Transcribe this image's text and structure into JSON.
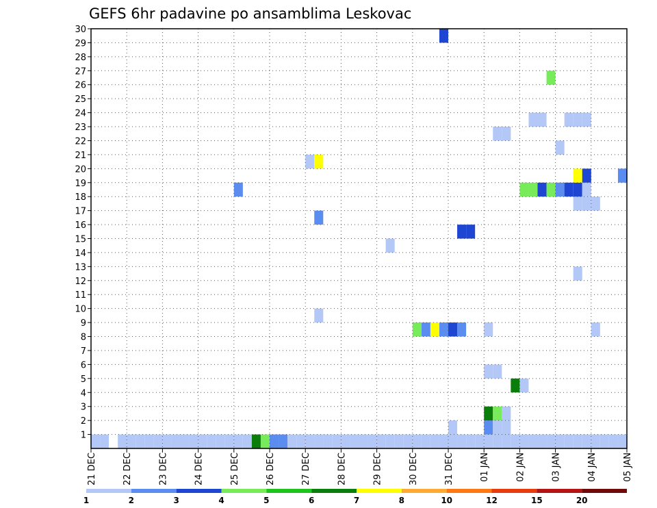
{
  "chart_data": {
    "type": "heatmap",
    "title": "GEFS 6hr padavine po ansamblima Leskovac",
    "xlabel": "",
    "ylabel": "",
    "x_ticks": [
      "21 DEC",
      "22 DEC",
      "23 DEC",
      "24 DEC",
      "25 DEC",
      "26 DEC",
      "27 DEC",
      "28 DEC",
      "29 DEC",
      "30 DEC",
      "31 DEC",
      "01 JAN",
      "02 JAN",
      "03 JAN",
      "04 JAN",
      "05 JAN"
    ],
    "x_range_days": [
      0,
      15
    ],
    "y_ticks": [
      1,
      2,
      3,
      4,
      5,
      6,
      7,
      8,
      9,
      10,
      11,
      12,
      13,
      14,
      15,
      16,
      17,
      18,
      19,
      20,
      21,
      22,
      23,
      24,
      25,
      26,
      27,
      28,
      29,
      30
    ],
    "y_range": [
      0,
      30
    ],
    "grid": true,
    "legend_placement": "bottom",
    "legend": {
      "labels": [
        "1",
        "2",
        "3",
        "4",
        "5",
        "6",
        "7",
        "8",
        "10",
        "12",
        "15",
        "20"
      ],
      "colors": [
        "#b4c8f8",
        "#5b8cf0",
        "#1e46d2",
        "#78eb5a",
        "#1ec31e",
        "#0a7d0a",
        "#ffff00",
        "#ffaa32",
        "#ff7814",
        "#e63c0f",
        "#b41414",
        "#6e0a0a"
      ]
    },
    "cells": [
      [
        0.125,
        0,
        "#b4c8f8"
      ],
      [
        0.375,
        0,
        "#b4c8f8"
      ],
      [
        0.875,
        0,
        "#b4c8f8"
      ],
      [
        4.375,
        0,
        "#b4c8f8"
      ],
      [
        4.625,
        0,
        "#0a7d0a"
      ],
      [
        4.875,
        0,
        "#78eb5a"
      ],
      [
        5.125,
        0,
        "#5b8cf0"
      ],
      [
        5.375,
        0,
        "#5b8cf0"
      ],
      [
        5.625,
        0,
        "#b4c8f8"
      ],
      [
        5.875,
        0,
        "#b4c8f8"
      ],
      [
        6.125,
        0,
        "#b4c8f8"
      ],
      [
        6.375,
        0,
        "#b4c8f8"
      ],
      [
        6.625,
        0,
        "#b4c8f8"
      ],
      [
        6.875,
        0,
        "#b4c8f8"
      ],
      [
        7.125,
        0,
        "#b4c8f8"
      ],
      [
        7.375,
        0,
        "#b4c8f8"
      ],
      [
        7.625,
        0,
        "#b4c8f8"
      ],
      [
        7.875,
        0,
        "#b4c8f8"
      ],
      [
        8.125,
        0,
        "#b4c8f8"
      ],
      [
        8.375,
        0,
        "#b4c8f8"
      ],
      [
        8.625,
        0,
        "#b4c8f8"
      ],
      [
        8.875,
        0,
        "#b4c8f8"
      ],
      [
        9.125,
        0,
        "#b4c8f8"
      ],
      [
        9.375,
        0,
        "#b4c8f8"
      ],
      [
        9.625,
        0,
        "#b4c8f8"
      ],
      [
        9.875,
        0,
        "#b4c8f8"
      ],
      [
        10.125,
        0,
        "#b4c8f8"
      ],
      [
        10.375,
        0,
        "#b4c8f8"
      ],
      [
        10.625,
        0,
        "#b4c8f8"
      ],
      [
        10.875,
        0,
        "#b4c8f8"
      ],
      [
        11.125,
        0,
        "#b4c8f8"
      ],
      [
        11.375,
        0,
        "#b4c8f8"
      ],
      [
        11.625,
        0,
        "#b4c8f8"
      ],
      [
        11.875,
        0,
        "#b4c8f8"
      ],
      [
        12.125,
        0,
        "#b4c8f8"
      ],
      [
        12.375,
        0,
        "#b4c8f8"
      ],
      [
        12.625,
        0,
        "#b4c8f8"
      ],
      [
        12.875,
        0,
        "#b4c8f8"
      ],
      [
        13.125,
        0,
        "#b4c8f8"
      ],
      [
        13.375,
        0,
        "#b4c8f8"
      ],
      [
        13.625,
        0,
        "#b4c8f8"
      ],
      [
        13.875,
        0,
        "#b4c8f8"
      ],
      [
        14.125,
        0,
        "#b4c8f8"
      ],
      [
        14.375,
        0,
        "#b4c8f8"
      ],
      [
        14.625,
        0,
        "#b4c8f8"
      ],
      [
        14.875,
        0,
        "#b4c8f8"
      ],
      [
        2.875,
        0,
        "#b4c8f8"
      ],
      [
        3.125,
        0,
        "#b4c8f8"
      ],
      [
        3.375,
        0,
        "#b4c8f8"
      ],
      [
        3.625,
        0,
        "#b4c8f8"
      ],
      [
        3.875,
        0,
        "#b4c8f8"
      ],
      [
        4.125,
        0,
        "#b4c8f8"
      ],
      [
        1.125,
        0,
        "#b4c8f8"
      ],
      [
        1.375,
        0,
        "#b4c8f8"
      ],
      [
        1.625,
        0,
        "#b4c8f8"
      ],
      [
        1.875,
        0,
        "#b4c8f8"
      ],
      [
        2.125,
        0,
        "#b4c8f8"
      ],
      [
        2.375,
        0,
        "#b4c8f8"
      ],
      [
        2.625,
        0,
        "#b4c8f8"
      ],
      [
        6.375,
        0,
        "#b4c8f8"
      ],
      [
        11.125,
        1,
        "#5b8cf0"
      ],
      [
        11.375,
        1,
        "#b4c8f8"
      ],
      [
        11.125,
        2,
        "#0a7d0a"
      ],
      [
        11.375,
        2,
        "#78eb5a"
      ],
      [
        11.625,
        1,
        "#b4c8f8"
      ],
      [
        11.625,
        2,
        "#b4c8f8"
      ],
      [
        10.125,
        1,
        "#b4c8f8"
      ],
      [
        11.875,
        4,
        "#0a7d0a"
      ],
      [
        12.125,
        4,
        "#b4c8f8"
      ],
      [
        11.125,
        5,
        "#b4c8f8"
      ],
      [
        11.375,
        5,
        "#b4c8f8"
      ],
      [
        9.125,
        8,
        "#78eb5a"
      ],
      [
        9.375,
        8,
        "#5b8cf0"
      ],
      [
        9.625,
        8,
        "#ffff00"
      ],
      [
        9.875,
        8,
        "#5b8cf0"
      ],
      [
        10.125,
        8,
        "#1e46d2"
      ],
      [
        10.375,
        8,
        "#5b8cf0"
      ],
      [
        11.125,
        8,
        "#b4c8f8"
      ],
      [
        14.125,
        8,
        "#b4c8f8"
      ],
      [
        6.375,
        9,
        "#b4c8f8"
      ],
      [
        13.625,
        12,
        "#b4c8f8"
      ],
      [
        8.375,
        14,
        "#b4c8f8"
      ],
      [
        10.375,
        15,
        "#1e46d2"
      ],
      [
        10.625,
        15,
        "#1e46d2"
      ],
      [
        6.375,
        16,
        "#5b8cf0"
      ],
      [
        13.625,
        17,
        "#b4c8f8"
      ],
      [
        13.875,
        17,
        "#b4c8f8"
      ],
      [
        14.125,
        17,
        "#b4c8f8"
      ],
      [
        4.125,
        18,
        "#5b8cf0"
      ],
      [
        12.125,
        18,
        "#78eb5a"
      ],
      [
        12.375,
        18,
        "#78eb5a"
      ],
      [
        12.625,
        18,
        "#1e46d2"
      ],
      [
        12.875,
        18,
        "#78eb5a"
      ],
      [
        13.125,
        18,
        "#5b8cf0"
      ],
      [
        13.375,
        18,
        "#1e46d2"
      ],
      [
        13.625,
        18,
        "#1e46d2"
      ],
      [
        13.875,
        18,
        "#b4c8f8"
      ],
      [
        14.875,
        19,
        "#5b8cf0"
      ],
      [
        13.625,
        19,
        "#ffff00"
      ],
      [
        13.875,
        19,
        "#1e46d2"
      ],
      [
        6.125,
        20,
        "#b4c8f8"
      ],
      [
        6.375,
        20,
        "#ffff00"
      ],
      [
        13.125,
        21,
        "#b4c8f8"
      ],
      [
        11.375,
        22,
        "#b4c8f8"
      ],
      [
        11.625,
        22,
        "#b4c8f8"
      ],
      [
        12.375,
        23,
        "#b4c8f8"
      ],
      [
        12.625,
        23,
        "#b4c8f8"
      ],
      [
        13.375,
        23,
        "#b4c8f8"
      ],
      [
        13.625,
        23,
        "#b4c8f8"
      ],
      [
        13.875,
        23,
        "#b4c8f8"
      ],
      [
        12.875,
        26,
        "#78eb5a"
      ],
      [
        9.875,
        29,
        "#1e46d2"
      ]
    ]
  }
}
